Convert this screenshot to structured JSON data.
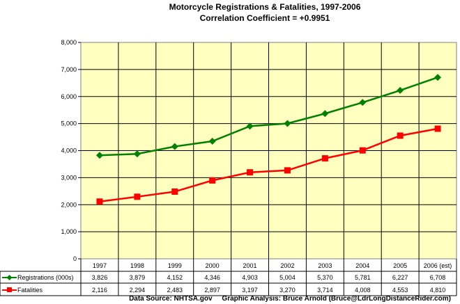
{
  "chart_data": {
    "type": "line",
    "title": "Motorcycle Registrations & Fatalities, 1997-2006",
    "subtitle": "Correlation Coefficient = +0.9951",
    "categories": [
      "1997",
      "1998",
      "1999",
      "2000",
      "2001",
      "2002",
      "2003",
      "2004",
      "2005",
      "2006 (est)"
    ],
    "ylim": [
      0,
      8000
    ],
    "yticks": [
      "0",
      "1,000",
      "2,000",
      "3,000",
      "4,000",
      "5,000",
      "6,000",
      "7,000",
      "8,000"
    ],
    "grid": true,
    "legend": "data-table",
    "series": [
      {
        "name": "Registrations (000s)",
        "color": "#008000",
        "marker": "diamond",
        "values": [
          3826,
          3879,
          4152,
          4346,
          4903,
          5004,
          5370,
          5781,
          6227,
          6708
        ],
        "labels": [
          "3,826",
          "3,879",
          "4,152",
          "4,346",
          "4,903",
          "5,004",
          "5,370",
          "5,781",
          "6,227",
          "6,708"
        ]
      },
      {
        "name": "Fatalities",
        "color": "#ff0000",
        "marker": "square",
        "values": [
          2116,
          2294,
          2483,
          2897,
          3197,
          3270,
          3714,
          4008,
          4553,
          4810
        ],
        "labels": [
          "2,116",
          "2,294",
          "2,483",
          "2,897",
          "3,197",
          "3,270",
          "3,714",
          "4,008",
          "4,553",
          "4,810"
        ]
      }
    ],
    "footer": "Data Source: NHTSA.gov     Graphic Analysis: Bruce Arnold (Bruce@LdrLongDistanceRider.com)",
    "plot_background": "#ffffc0"
  }
}
